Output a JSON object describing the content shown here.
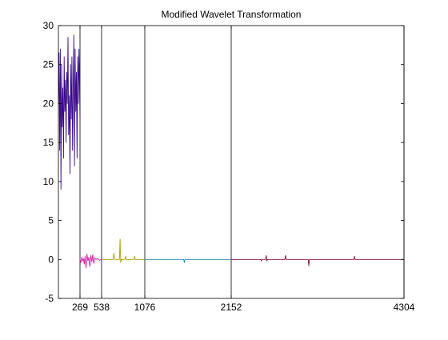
{
  "chart_data": {
    "type": "line",
    "title": "Modified Wavelet Transformation",
    "xlim": [
      0,
      4304
    ],
    "ylim": [
      -5,
      30
    ],
    "yticks": [
      -5,
      0,
      5,
      10,
      15,
      20,
      25,
      30
    ],
    "xticks": [
      269,
      538,
      1076,
      2152,
      4304
    ],
    "xtick_labels": [
      "269",
      "538",
      "1076",
      "2152",
      "4304"
    ],
    "boundaries": [
      269,
      538,
      1076,
      2152,
      4304
    ],
    "grid": false,
    "series": [
      {
        "color": "#3a0a8a",
        "segment": [
          0,
          269
        ],
        "points": [
          [
            0,
            20
          ],
          [
            8,
            26.5
          ],
          [
            16,
            14
          ],
          [
            24,
            27
          ],
          [
            32,
            9
          ],
          [
            40,
            25
          ],
          [
            48,
            17
          ],
          [
            56,
            22
          ],
          [
            64,
            13
          ],
          [
            72,
            26
          ],
          [
            80,
            19
          ],
          [
            88,
            23
          ],
          [
            96,
            15
          ],
          [
            104,
            24
          ],
          [
            112,
            20
          ],
          [
            120,
            28.5
          ],
          [
            128,
            16
          ],
          [
            136,
            21
          ],
          [
            144,
            11
          ],
          [
            152,
            25
          ],
          [
            160,
            18
          ],
          [
            168,
            26
          ],
          [
            176,
            14
          ],
          [
            184,
            22
          ],
          [
            192,
            28.8
          ],
          [
            200,
            12
          ],
          [
            208,
            27
          ],
          [
            216,
            19
          ],
          [
            224,
            24
          ],
          [
            232,
            13
          ],
          [
            240,
            26
          ],
          [
            248,
            20
          ],
          [
            256,
            27
          ],
          [
            264,
            22
          ],
          [
            269,
            18
          ]
        ]
      },
      {
        "color": "#d01aa0",
        "segment": [
          269,
          538
        ],
        "points": [
          [
            269,
            0
          ],
          [
            280,
            -0.4
          ],
          [
            292,
            0.3
          ],
          [
            300,
            -0.2
          ],
          [
            312,
            0.1
          ],
          [
            322,
            -0.6
          ],
          [
            332,
            0.4
          ],
          [
            345,
            -1.1
          ],
          [
            356,
            0.7
          ],
          [
            368,
            -0.2
          ],
          [
            380,
            0.3
          ],
          [
            392,
            -0.9
          ],
          [
            404,
            0.5
          ],
          [
            416,
            -0.3
          ],
          [
            428,
            0.6
          ],
          [
            440,
            -0.5
          ],
          [
            452,
            0.2
          ],
          [
            470,
            0
          ],
          [
            490,
            0.1
          ],
          [
            510,
            -0.1
          ],
          [
            538,
            0
          ]
        ]
      },
      {
        "color": "#a8a000",
        "segment": [
          538,
          1076
        ],
        "points": [
          [
            538,
            0
          ],
          [
            680,
            0
          ],
          [
            690,
            0.8
          ],
          [
            700,
            0
          ],
          [
            760,
            0
          ],
          [
            768,
            2.6
          ],
          [
            776,
            -0.4
          ],
          [
            784,
            0
          ],
          [
            830,
            0
          ],
          [
            838,
            0.4
          ],
          [
            846,
            0
          ],
          [
            940,
            0
          ],
          [
            948,
            0.4
          ],
          [
            956,
            0
          ],
          [
            1076,
            0
          ]
        ]
      },
      {
        "color": "#1a8aa8",
        "segment": [
          1076,
          2152
        ],
        "points": [
          [
            1076,
            0
          ],
          [
            1560,
            0
          ],
          [
            1568,
            -0.4
          ],
          [
            1576,
            0
          ],
          [
            2152,
            0
          ]
        ]
      },
      {
        "color": "#8a0a3a",
        "segment": [
          2152,
          4304
        ],
        "points": [
          [
            2152,
            0
          ],
          [
            2520,
            0
          ],
          [
            2528,
            -0.2
          ],
          [
            2536,
            0
          ],
          [
            2580,
            0
          ],
          [
            2588,
            0.5
          ],
          [
            2596,
            -0.2
          ],
          [
            2604,
            0
          ],
          [
            2820,
            0
          ],
          [
            2828,
            0.5
          ],
          [
            2836,
            0
          ],
          [
            3110,
            0
          ],
          [
            3118,
            -0.8
          ],
          [
            3126,
            0
          ],
          [
            3680,
            0
          ],
          [
            3688,
            0.4
          ],
          [
            3696,
            0
          ],
          [
            4304,
            0
          ]
        ]
      }
    ]
  }
}
